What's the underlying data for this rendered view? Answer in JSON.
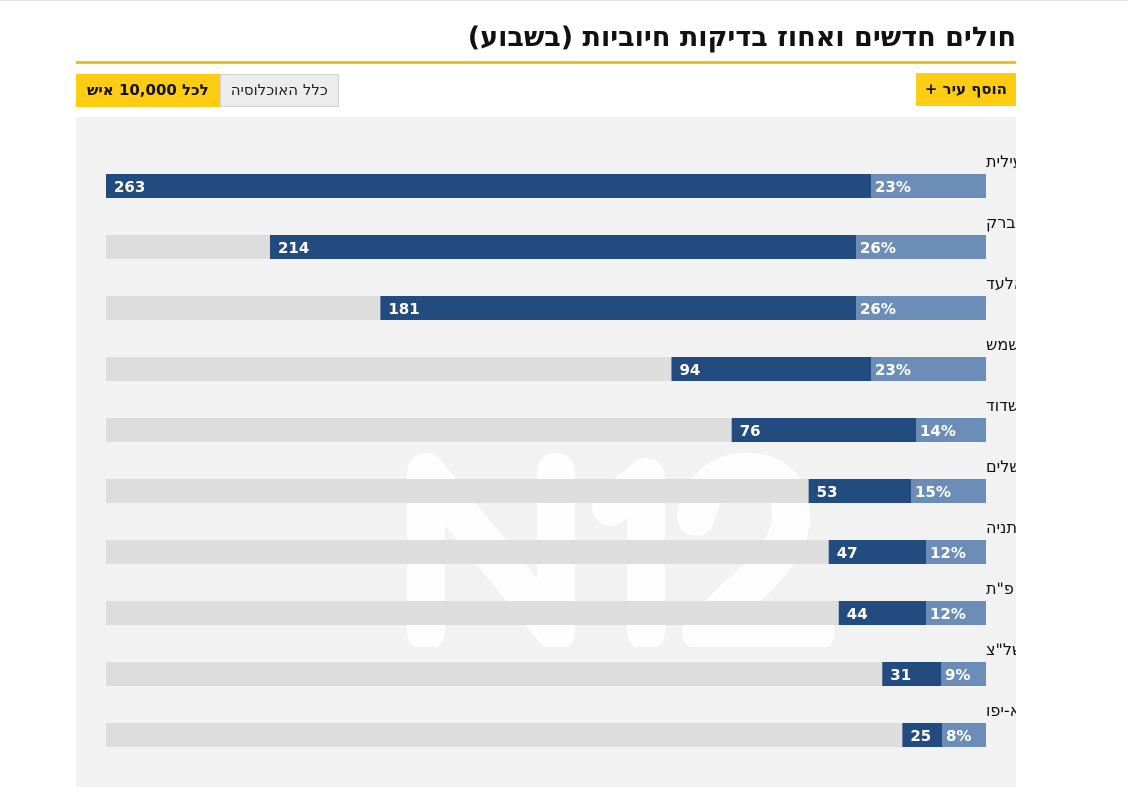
{
  "header": {
    "title": "חולים חדשים ואחוז בדיקות חיוביות (בשבוע)",
    "add_city_label": "הוסף עיר +",
    "toggle": {
      "active_label": "לכל 10,000 איש",
      "inactive_label": "כלל האוכלוסיה"
    }
  },
  "colors": {
    "accent": "#ffcc14",
    "bar_dark": "#224b80",
    "bar_light": "#6c8db7",
    "track": "#dddddd",
    "panel": "#f2f2f2"
  },
  "chart_data": {
    "type": "bar",
    "orientation": "horizontal",
    "categories": [
      "מודיעין עילית",
      "בני ברק",
      "אלעד",
      "בית שמש",
      "אשדוד",
      "ירושלים",
      "נתניה",
      "פ\"ת",
      "ראשל\"צ",
      "ת\"א-יפו"
    ],
    "series": [
      {
        "values": [
          263,
          214,
          181,
          94,
          76,
          53,
          47,
          44,
          31,
          25
        ]
      },
      {
        "values": [
          23,
          26,
          26,
          23,
          14,
          15,
          12,
          12,
          9,
          8
        ],
        "unit": "%"
      }
    ],
    "xlim": [
      0,
      263
    ]
  }
}
